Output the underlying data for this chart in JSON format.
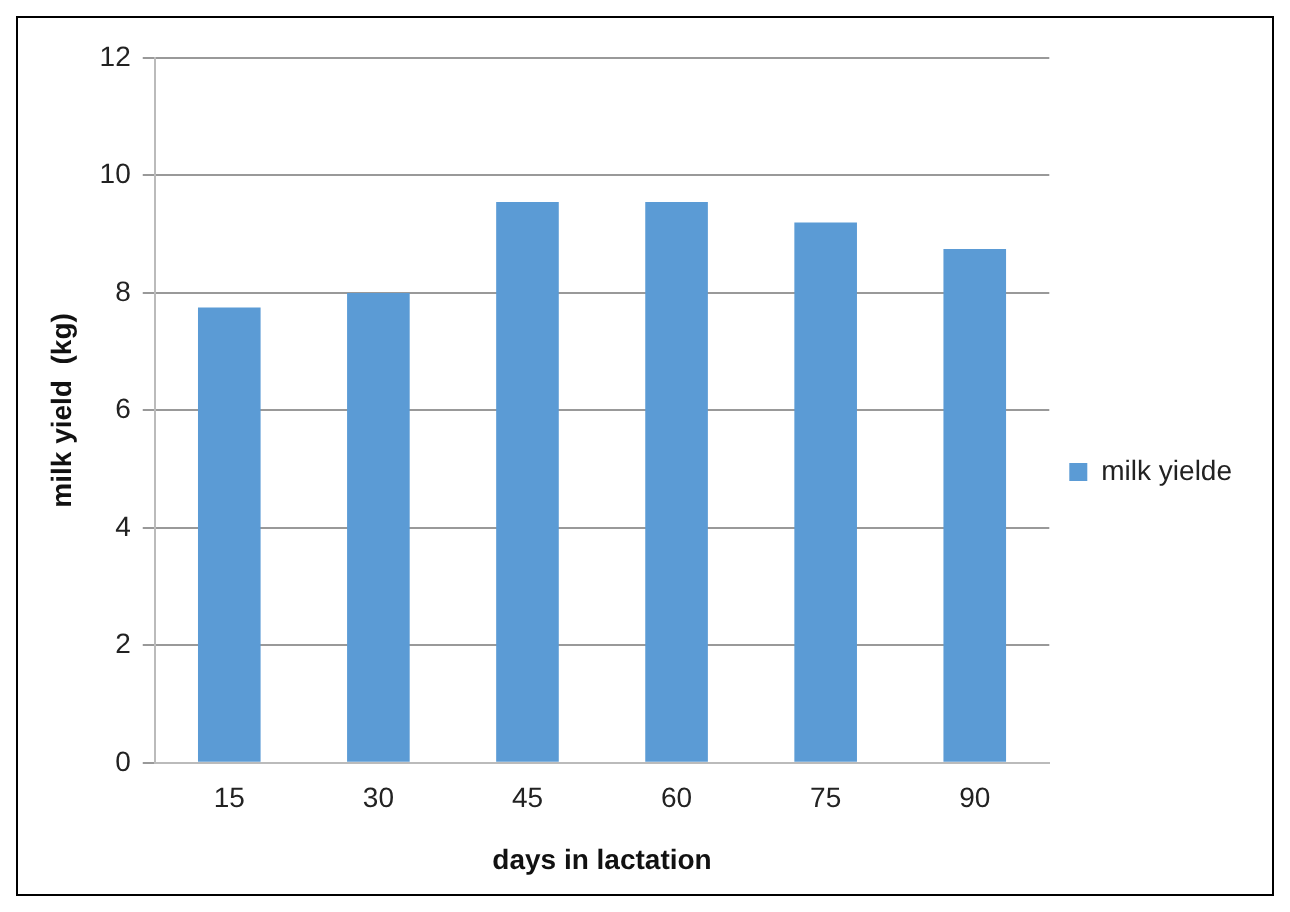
{
  "chart_data": {
    "type": "bar",
    "xlabel": "days in lactation",
    "ylabel": "milk yield  (kg)",
    "categories": [
      "15",
      "30",
      "45",
      "60",
      "75",
      "90"
    ],
    "series": [
      {
        "name": "milk yielde",
        "color": "#5b9bd5",
        "values": [
          7.75,
          8.0,
          9.55,
          9.55,
          9.2,
          8.75
        ]
      }
    ],
    "ylim": [
      0,
      12
    ],
    "yticks": [
      0,
      2,
      4,
      6,
      8,
      10,
      12
    ],
    "grid": "y",
    "legend": "right"
  }
}
